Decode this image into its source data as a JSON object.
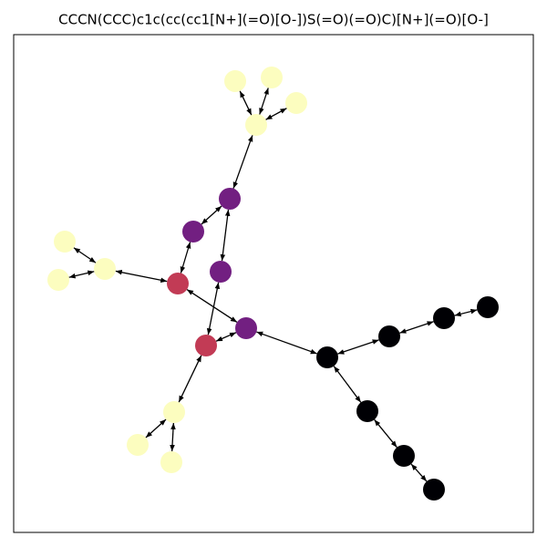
{
  "title": "CCCN(CCC)c1c(cc(cc1[N+](=O)[O-])S(=O)(=O)C)[N+](=O)[O-]",
  "nodes": [
    {
      "color": "#fcfdbf"
    },
    {
      "color": "#fcfdbf"
    },
    {
      "color": "#fcfdbf"
    },
    {
      "color": "#fcfdbf"
    },
    {
      "color": "#721f81"
    },
    {
      "color": "#721f81"
    },
    {
      "color": "#721f81"
    },
    {
      "color": "#721f81"
    },
    {
      "color": "#c23b55"
    },
    {
      "color": "#c23b55"
    },
    {
      "color": "#fcfdbf"
    },
    {
      "color": "#fcfdbf"
    },
    {
      "color": "#fcfdbf"
    },
    {
      "color": "#fcfdbf"
    },
    {
      "color": "#fcfdbf"
    },
    {
      "color": "#fcfdbf"
    },
    {
      "color": "#000004"
    },
    {
      "color": "#000004"
    },
    {
      "color": "#000004"
    },
    {
      "color": "#000004"
    },
    {
      "color": "#000004"
    },
    {
      "color": "#000004"
    },
    {
      "color": "#000004"
    }
  ],
  "edges": [
    [
      3,
      0
    ],
    [
      3,
      1
    ],
    [
      3,
      2
    ],
    [
      3,
      4
    ],
    [
      4,
      5
    ],
    [
      4,
      6
    ],
    [
      5,
      8
    ],
    [
      12,
      10
    ],
    [
      12,
      11
    ],
    [
      12,
      8
    ],
    [
      8,
      7
    ],
    [
      6,
      9
    ],
    [
      9,
      7
    ],
    [
      9,
      13
    ],
    [
      13,
      14
    ],
    [
      13,
      15
    ],
    [
      7,
      16
    ],
    [
      16,
      17
    ],
    [
      17,
      18
    ],
    [
      18,
      19
    ],
    [
      16,
      20
    ],
    [
      20,
      21
    ],
    [
      21,
      22
    ]
  ]
}
